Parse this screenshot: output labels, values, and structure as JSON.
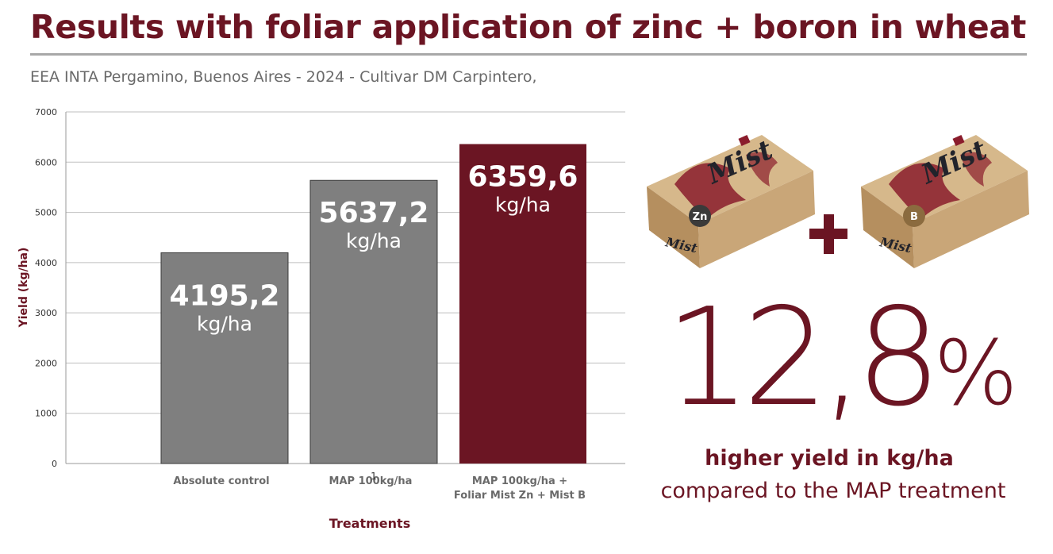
{
  "header": {
    "title": "Results with foliar application of zinc + boron in wheat",
    "subtitle": "EEA INTA Pergamino, Buenos Aires - 2024 - Cultivar DM Carpintero,"
  },
  "chart_data": {
    "type": "bar",
    "xlabel": "Treatments",
    "ylabel": "Yield (kg/ha)",
    "ylim": [
      0,
      7000
    ],
    "yticks": [
      0,
      1000,
      2000,
      3000,
      4000,
      5000,
      6000,
      7000
    ],
    "grid": true,
    "categories": [
      [
        "Absolute control"
      ],
      [
        "MAP 100kg/ha"
      ],
      [
        "MAP 100kg/ha +",
        "Foliar Mist Zn + Mist B"
      ]
    ],
    "values": [
      4195.2,
      5637.2,
      6359.6
    ],
    "value_labels": [
      "4195,2",
      "5637,2",
      "6359,6"
    ],
    "unit_label": "kg/ha",
    "bar_colors": [
      "#7f7f7f",
      "#7f7f7f",
      "#6b1523"
    ],
    "stray_label": "1"
  },
  "products": {
    "box1": {
      "brand": "Mist",
      "badge": "Zn",
      "side_brand": "Mist"
    },
    "box2": {
      "brand": "Mist",
      "badge": "B",
      "side_brand": "Mist"
    },
    "icons": [
      "plus-icon"
    ]
  },
  "highlight": {
    "value": "12,8",
    "symbol": "%",
    "line1": "higher yield in kg/ha",
    "line2": "compared to the MAP treatment"
  },
  "colors": {
    "brand": "#6b1523",
    "bar_gray": "#7f7f7f",
    "grid": "#bfbfbf",
    "box_kraft": "#c9a678",
    "box_side": "#b58f5f"
  }
}
